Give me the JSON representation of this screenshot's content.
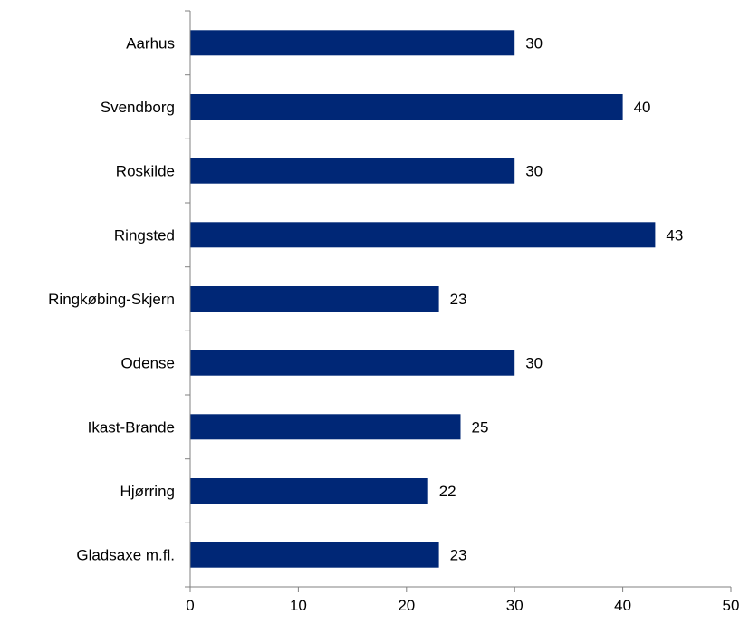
{
  "chart_data": {
    "type": "bar",
    "orientation": "horizontal",
    "title": "",
    "xlabel": "",
    "ylabel": "",
    "categories": [
      "Aarhus",
      "Svendborg",
      "Roskilde",
      "Ringsted",
      "Ringkøbing-Skjern",
      "Odense",
      "Ikast-Brande",
      "Hjørring",
      "Gladsaxe m.fl."
    ],
    "values": [
      30,
      40,
      30,
      43,
      23,
      30,
      25,
      22,
      23
    ],
    "data_labels": [
      "30",
      "40",
      "30",
      "43",
      "23",
      "30",
      "25",
      "22",
      "23"
    ],
    "xlim": [
      0,
      50
    ],
    "x_ticks": [
      0,
      10,
      20,
      30,
      40,
      50
    ],
    "x_tick_labels": [
      "0",
      "10",
      "20",
      "30",
      "40",
      "50"
    ],
    "grid": false,
    "legend": "none",
    "bar_color": "#002776"
  }
}
